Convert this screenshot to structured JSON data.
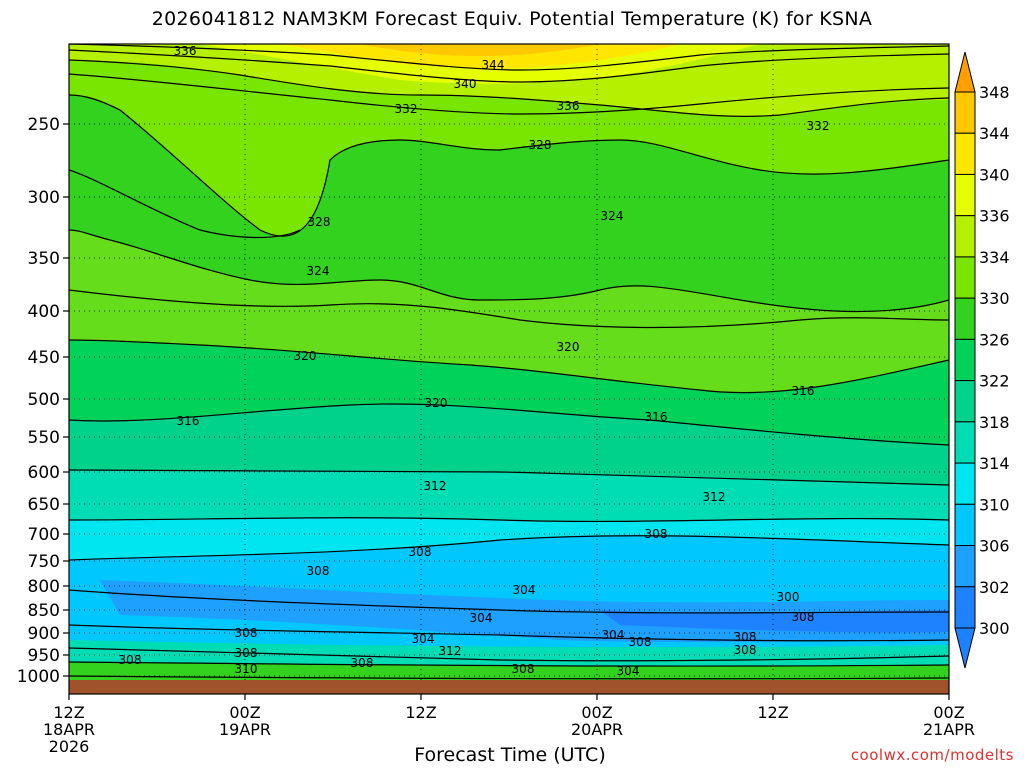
{
  "title": "2026041812 NAM3KM Forecast Equiv. Potential Temperature (K) for KSNA",
  "credit": "coolwx.com/modelts",
  "chart_data": {
    "type": "heatmap",
    "title": "2026041812 NAM3KM Forecast Equiv. Potential Temperature (K) for KSNA",
    "xlabel": "Forecast Time (UTC)",
    "ylabel": "",
    "y_ticks": [
      250,
      300,
      350,
      400,
      450,
      500,
      550,
      600,
      650,
      700,
      750,
      800,
      850,
      900,
      950,
      1000
    ],
    "y_axis_inverted": true,
    "x_ticks": [
      {
        "line1": "12Z",
        "line2": "18APR",
        "line3": "2026"
      },
      {
        "line1": "00Z",
        "line2": "19APR",
        "line3": ""
      },
      {
        "line1": "12Z",
        "line2": "",
        "line3": ""
      },
      {
        "line1": "00Z",
        "line2": "20APR",
        "line3": ""
      },
      {
        "line1": "12Z",
        "line2": "",
        "line3": ""
      },
      {
        "line1": "00Z",
        "line2": "21APR",
        "line3": ""
      }
    ],
    "colorbar": {
      "levels": [
        300,
        302,
        306,
        310,
        314,
        318,
        322,
        326,
        330,
        334,
        336,
        340,
        344,
        348
      ],
      "labels": [
        "300",
        "302",
        "306",
        "310",
        "314",
        "318",
        "322",
        "326",
        "330",
        "334",
        "336",
        "340",
        "344",
        "348"
      ],
      "colors": [
        "#1e82ff",
        "#1ea0ff",
        "#00c8ff",
        "#00e6f0",
        "#00dcb4",
        "#00d28c",
        "#00d25a",
        "#32d21e",
        "#78e600",
        "#b4f000",
        "#e6ff00",
        "#ffe600",
        "#ffc800",
        "#ffa000"
      ]
    },
    "series": [
      {
        "values": [
          336,
          344,
          340,
          332,
          336,
          332,
          328,
          328,
          324,
          324,
          320,
          320,
          320,
          316,
          316,
          316,
          312,
          312,
          308,
          308,
          308,
          304,
          304,
          300,
          308,
          308,
          304,
          304,
          308,
          312,
          308,
          308,
          308,
          308,
          308,
          310,
          304,
          308
        ]
      }
    ],
    "grid": true,
    "ground_color": "#a0522d"
  }
}
